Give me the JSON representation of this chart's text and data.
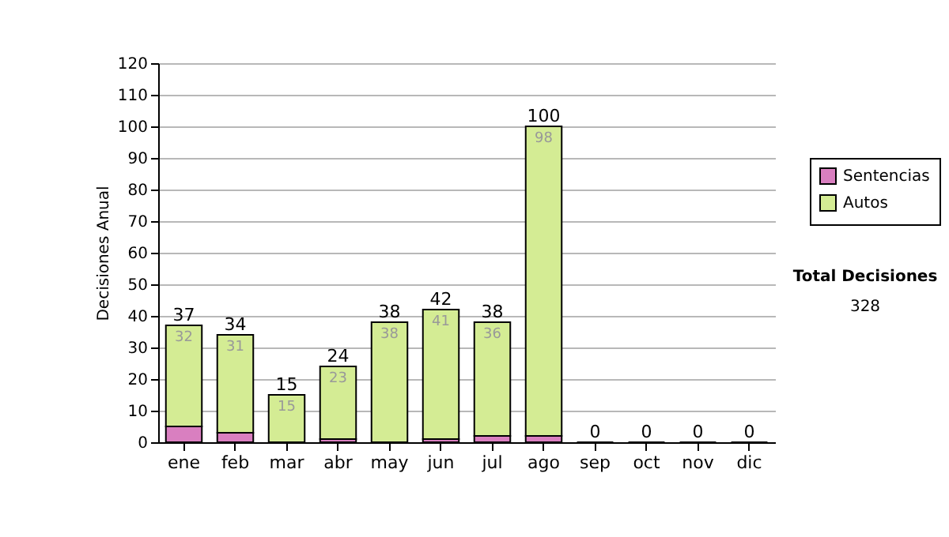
{
  "chart_data": {
    "type": "bar",
    "stacked": true,
    "ylabel": "Decisiones Anual",
    "categories": [
      "ene",
      "feb",
      "mar",
      "abr",
      "may",
      "jun",
      "jul",
      "ago",
      "sep",
      "oct",
      "nov",
      "dic"
    ],
    "series": [
      {
        "name": "Sentencias",
        "color": "#d97fc0",
        "values": [
          5,
          3,
          0,
          1,
          0,
          1,
          2,
          2,
          0,
          0,
          0,
          0
        ]
      },
      {
        "name": "Autos",
        "color": "#d4ec94",
        "values": [
          32,
          31,
          15,
          23,
          38,
          41,
          36,
          98,
          0,
          0,
          0,
          0
        ],
        "value_labels": [
          "32",
          "31",
          "15",
          "23",
          "38",
          "41",
          "36",
          "98",
          null,
          null,
          null,
          null
        ]
      }
    ],
    "totals": [
      "37",
      "34",
      "15",
      "24",
      "38",
      "42",
      "38",
      "100",
      "0",
      "0",
      "0",
      "0"
    ],
    "ylim": [
      0,
      120
    ],
    "yticks": [
      0,
      10,
      20,
      30,
      40,
      50,
      60,
      70,
      80,
      90,
      100,
      110,
      120
    ],
    "grid": "y",
    "legend": "right",
    "annotations": [
      "Total Decisiones",
      "328"
    ]
  }
}
